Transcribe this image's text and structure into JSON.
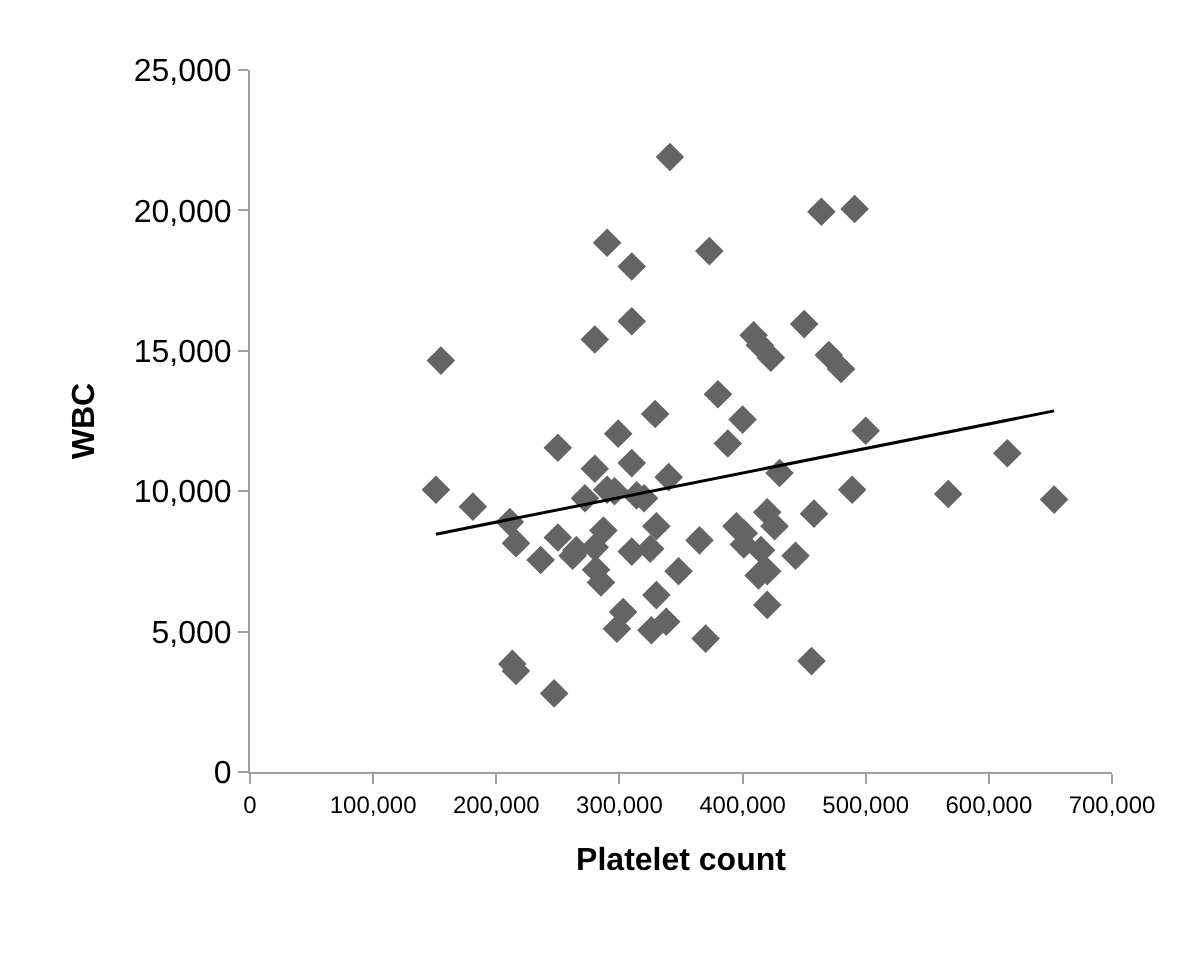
{
  "chart_data": {
    "type": "scatter",
    "xlabel": "Platelet count",
    "ylabel": "WBC",
    "xlim": [
      0,
      700000
    ],
    "ylim": [
      0,
      25000
    ],
    "xticks": [
      {
        "value": 0,
        "label": "0"
      },
      {
        "value": 100000,
        "label": "100,000"
      },
      {
        "value": 200000,
        "label": "200,000"
      },
      {
        "value": 300000,
        "label": "300,000"
      },
      {
        "value": 400000,
        "label": "400,000"
      },
      {
        "value": 500000,
        "label": "500,000"
      },
      {
        "value": 600000,
        "label": "600,000"
      },
      {
        "value": 700000,
        "label": "700,000"
      }
    ],
    "yticks": [
      {
        "value": 0,
        "label": "0"
      },
      {
        "value": 5000,
        "label": "5,000"
      },
      {
        "value": 10000,
        "label": "10,000"
      },
      {
        "value": 15000,
        "label": "15,000"
      },
      {
        "value": 20000,
        "label": "20,000"
      },
      {
        "value": 25000,
        "label": "25,000"
      }
    ],
    "marker": "diamond",
    "series": [
      {
        "color": "#646464",
        "x": [
          341000,
          290000,
          310000,
          310000,
          280000,
          155000,
          329000,
          299000,
          250000,
          310000,
          280000,
          151000,
          272000,
          290000,
          296000,
          340000,
          314000,
          320000,
          181000,
          211000,
          287000,
          330000,
          216000,
          250000,
          236000,
          262000,
          265000,
          280000,
          310000,
          325000,
          281000,
          285000,
          348000,
          330000,
          303000,
          298000,
          326000,
          338000,
          213000,
          216000,
          247000,
          464000,
          491000,
          373000,
          450000,
          409000,
          414000,
          423000,
          470000,
          480000,
          380000,
          400000,
          388000,
          500000,
          430000,
          615000,
          489000,
          567000,
          653000,
          458000,
          395000,
          401000,
          420000,
          426000,
          365000,
          401000,
          415000,
          443000,
          413000,
          420000,
          420000,
          370000,
          456000
        ],
        "values": [
          21900,
          18850,
          18000,
          16050,
          15400,
          14650,
          12750,
          12050,
          11550,
          11000,
          10800,
          10050,
          9750,
          10050,
          10000,
          10500,
          9850,
          9750,
          9450,
          8900,
          8600,
          8750,
          8150,
          8350,
          7550,
          7700,
          7900,
          8000,
          7850,
          7950,
          7200,
          6750,
          7150,
          6300,
          5700,
          5100,
          5050,
          5350,
          3850,
          3600,
          2800,
          19950,
          20050,
          18550,
          15950,
          15550,
          15200,
          14750,
          14850,
          14350,
          13450,
          12550,
          11700,
          12150,
          10650,
          11350,
          10050,
          9900,
          9700,
          9200,
          8750,
          8500,
          9250,
          8750,
          8250,
          8100,
          7900,
          7700,
          7000,
          7150,
          5950,
          4750,
          3950
        ]
      },
      {
        "type": "line",
        "color": "#000000",
        "marker": "none",
        "line_style": "solid",
        "x": [
          151000,
          653000
        ],
        "values": [
          8470,
          12860
        ]
      }
    ]
  }
}
